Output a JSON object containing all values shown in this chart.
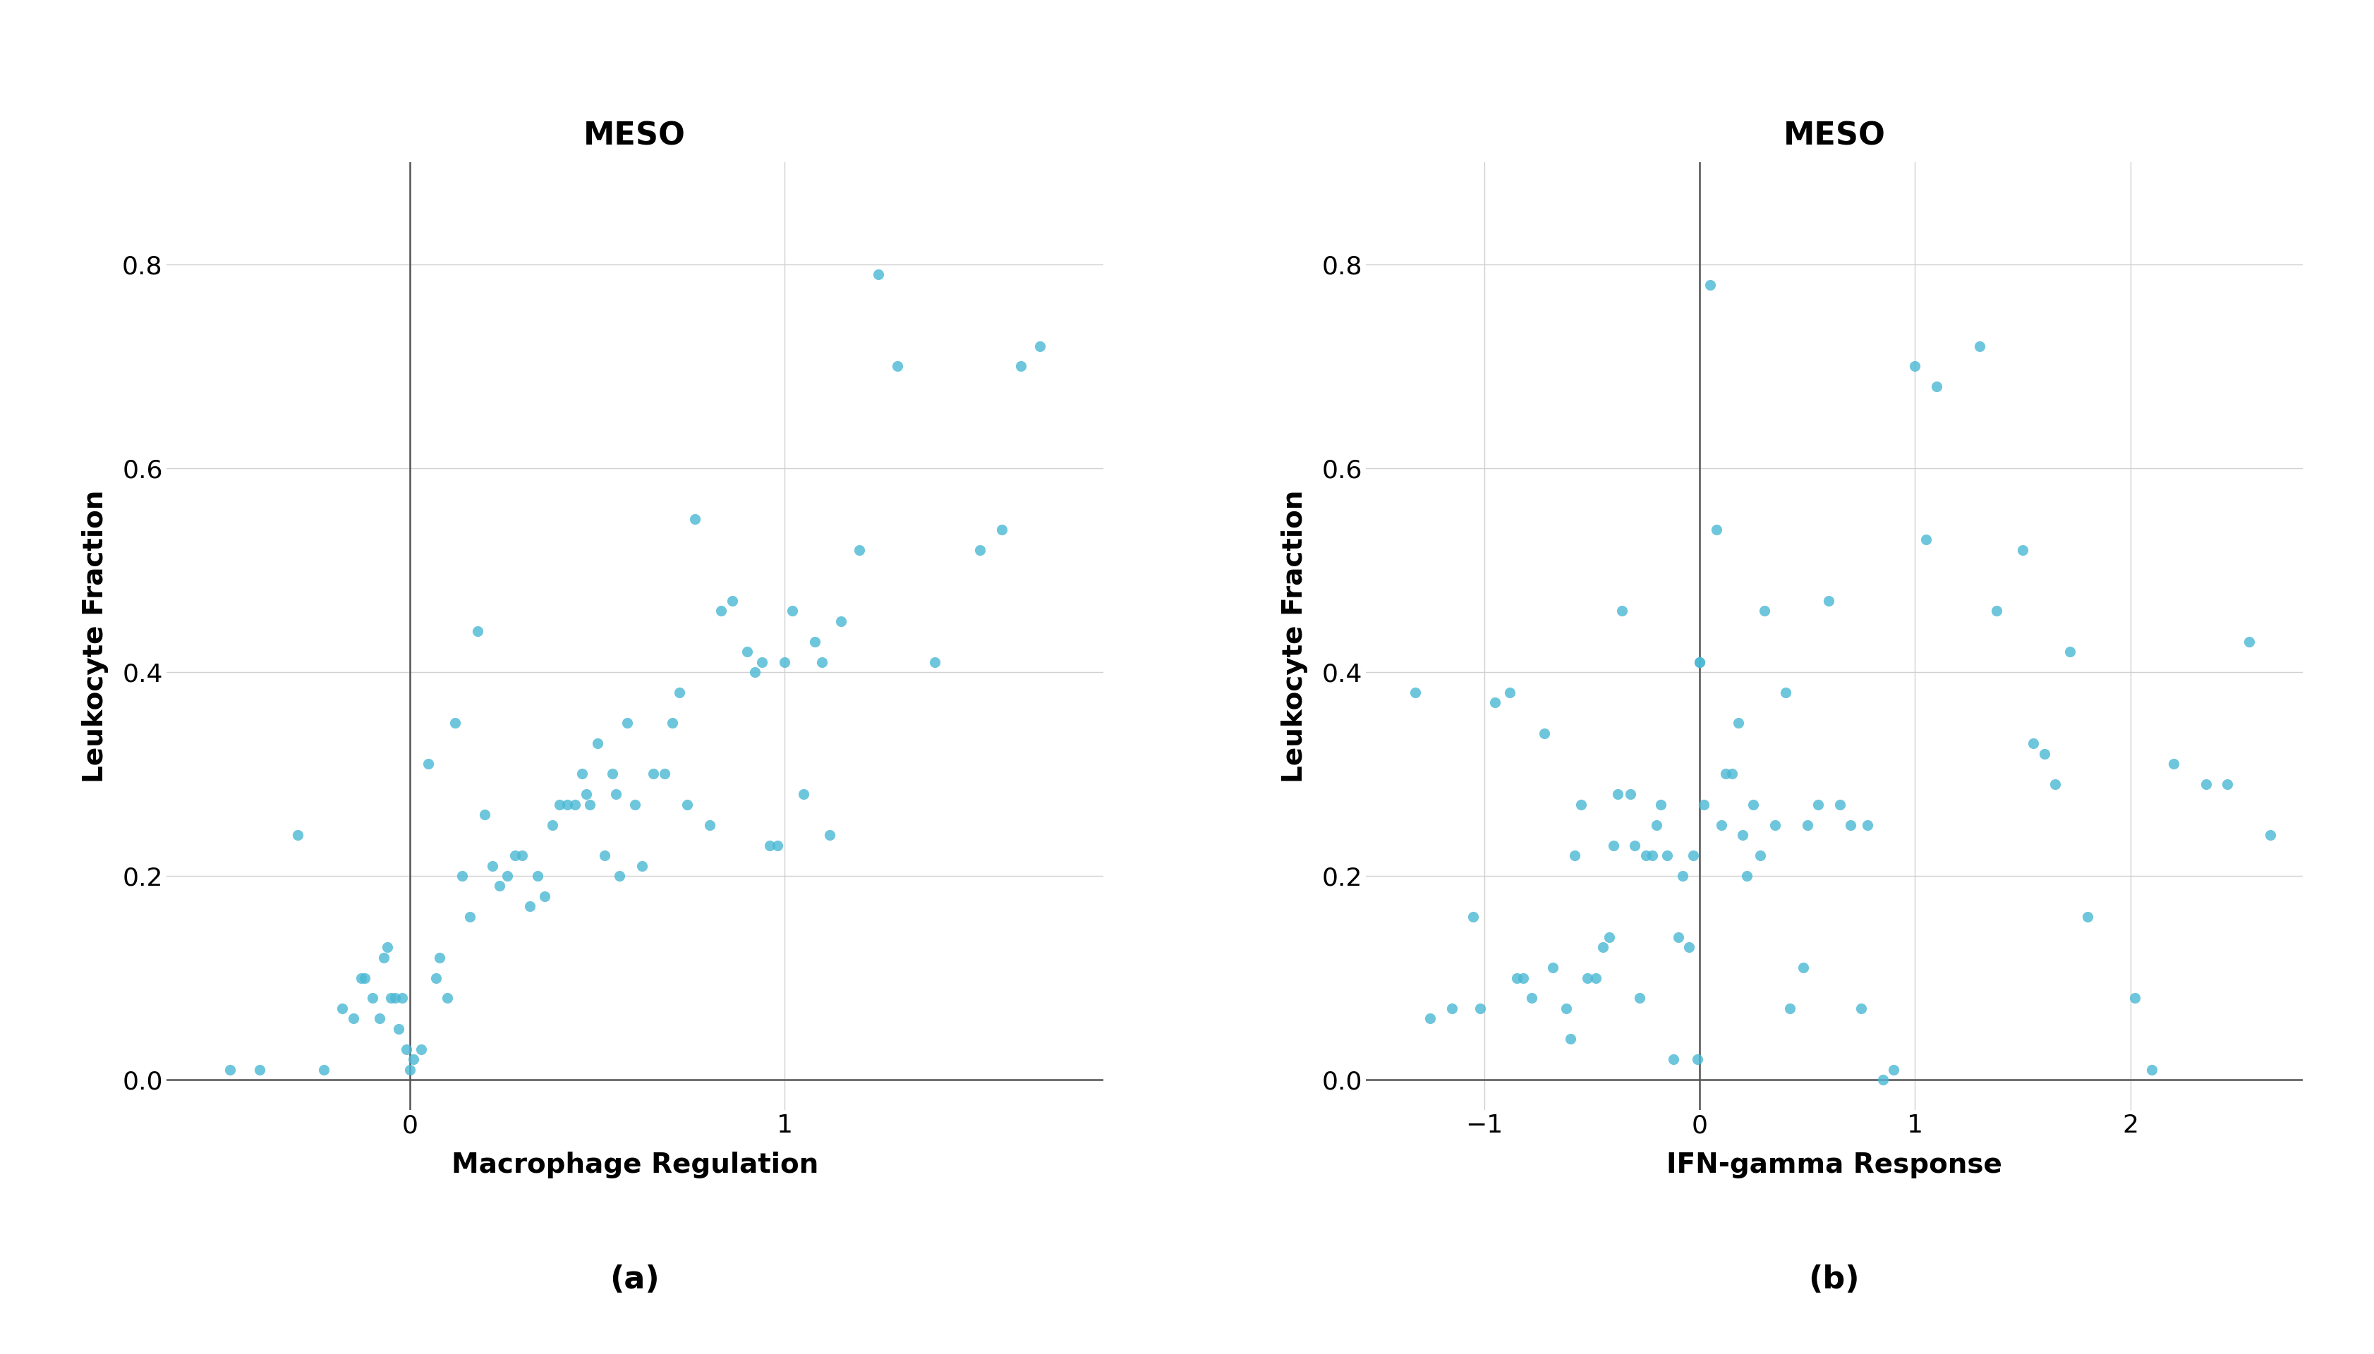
{
  "plot_a": {
    "title": "MESO",
    "xlabel": "Macrophage Regulation",
    "ylabel": "Leukocyte Fraction",
    "label": "(a)",
    "xlim": [
      -0.65,
      1.85
    ],
    "ylim": [
      -0.03,
      0.9
    ],
    "xticks": [
      0,
      1
    ],
    "yticks": [
      0.0,
      0.2,
      0.4,
      0.6,
      0.8
    ],
    "vline": 0,
    "hline": 0,
    "x": [
      -0.48,
      -0.4,
      -0.3,
      -0.23,
      -0.18,
      -0.15,
      -0.13,
      -0.12,
      -0.1,
      -0.08,
      -0.07,
      -0.06,
      -0.05,
      -0.04,
      -0.03,
      -0.02,
      -0.01,
      0.0,
      0.01,
      0.03,
      0.05,
      0.07,
      0.08,
      0.1,
      0.12,
      0.14,
      0.16,
      0.18,
      0.2,
      0.22,
      0.24,
      0.26,
      0.28,
      0.3,
      0.32,
      0.34,
      0.36,
      0.38,
      0.4,
      0.42,
      0.44,
      0.46,
      0.47,
      0.48,
      0.5,
      0.52,
      0.54,
      0.55,
      0.56,
      0.58,
      0.6,
      0.62,
      0.65,
      0.68,
      0.7,
      0.72,
      0.74,
      0.76,
      0.8,
      0.83,
      0.86,
      0.9,
      0.92,
      0.94,
      0.96,
      0.98,
      1.0,
      1.02,
      1.05,
      1.08,
      1.1,
      1.12,
      1.15,
      1.2,
      1.25,
      1.3,
      1.4,
      1.52,
      1.58,
      1.63,
      1.68
    ],
    "y": [
      0.01,
      0.01,
      0.24,
      0.01,
      0.07,
      0.06,
      0.1,
      0.1,
      0.08,
      0.06,
      0.12,
      0.13,
      0.08,
      0.08,
      0.05,
      0.08,
      0.03,
      0.01,
      0.02,
      0.03,
      0.31,
      0.1,
      0.12,
      0.08,
      0.35,
      0.2,
      0.16,
      0.44,
      0.26,
      0.21,
      0.19,
      0.2,
      0.22,
      0.22,
      0.17,
      0.2,
      0.18,
      0.25,
      0.27,
      0.27,
      0.27,
      0.3,
      0.28,
      0.27,
      0.33,
      0.22,
      0.3,
      0.28,
      0.2,
      0.35,
      0.27,
      0.21,
      0.3,
      0.3,
      0.35,
      0.38,
      0.27,
      0.55,
      0.25,
      0.46,
      0.47,
      0.42,
      0.4,
      0.41,
      0.23,
      0.23,
      0.41,
      0.46,
      0.28,
      0.43,
      0.41,
      0.24,
      0.45,
      0.52,
      0.79,
      0.7,
      0.41,
      0.52,
      0.54,
      0.7,
      0.72
    ]
  },
  "plot_b": {
    "title": "MESO",
    "xlabel": "IFN-gamma Response",
    "ylabel": "Leukocyte Fraction",
    "label": "(b)",
    "xlim": [
      -1.55,
      2.8
    ],
    "ylim": [
      -0.03,
      0.9
    ],
    "xticks": [
      -1,
      0,
      1,
      2
    ],
    "yticks": [
      0.0,
      0.2,
      0.4,
      0.6,
      0.8
    ],
    "vline": 0,
    "hline": 0,
    "x": [
      -1.32,
      -1.25,
      -1.15,
      -1.05,
      -1.02,
      -0.95,
      -0.88,
      -0.85,
      -0.82,
      -0.78,
      -0.72,
      -0.68,
      -0.62,
      -0.6,
      -0.58,
      -0.55,
      -0.52,
      -0.48,
      -0.45,
      -0.42,
      -0.4,
      -0.38,
      -0.36,
      -0.32,
      -0.3,
      -0.28,
      -0.25,
      -0.22,
      -0.2,
      -0.18,
      -0.15,
      -0.12,
      -0.1,
      -0.08,
      -0.05,
      -0.03,
      -0.01,
      0.0,
      0.0,
      0.02,
      0.05,
      0.08,
      0.1,
      0.12,
      0.15,
      0.18,
      0.2,
      0.22,
      0.25,
      0.28,
      0.3,
      0.35,
      0.4,
      0.42,
      0.48,
      0.5,
      0.55,
      0.6,
      0.65,
      0.7,
      0.75,
      0.78,
      0.85,
      0.9,
      1.0,
      1.05,
      1.1,
      1.3,
      1.38,
      1.5,
      1.55,
      1.6,
      1.65,
      1.72,
      1.8,
      2.02,
      2.1,
      2.2,
      2.35,
      2.45,
      2.55,
      2.65
    ],
    "y": [
      0.38,
      0.06,
      0.07,
      0.16,
      0.07,
      0.37,
      0.38,
      0.1,
      0.1,
      0.08,
      0.34,
      0.11,
      0.07,
      0.04,
      0.22,
      0.27,
      0.1,
      0.1,
      0.13,
      0.14,
      0.23,
      0.28,
      0.46,
      0.28,
      0.23,
      0.08,
      0.22,
      0.22,
      0.25,
      0.27,
      0.22,
      0.02,
      0.14,
      0.2,
      0.13,
      0.22,
      0.02,
      0.41,
      0.41,
      0.27,
      0.78,
      0.54,
      0.25,
      0.3,
      0.3,
      0.35,
      0.24,
      0.2,
      0.27,
      0.22,
      0.46,
      0.25,
      0.38,
      0.07,
      0.11,
      0.25,
      0.27,
      0.47,
      0.27,
      0.25,
      0.07,
      0.25,
      0.0,
      0.01,
      0.7,
      0.53,
      0.68,
      0.72,
      0.46,
      0.52,
      0.33,
      0.32,
      0.29,
      0.42,
      0.16,
      0.08,
      0.01,
      0.31,
      0.29,
      0.29,
      0.43,
      0.24
    ]
  },
  "dot_color": "#4ab8d4",
  "dot_size": 120,
  "dot_alpha": 0.8,
  "grid_color": "#d0d0d0",
  "spine_color": "#555555",
  "vline_color": "#555555",
  "hline_color": "#555555",
  "title_fontsize": 32,
  "label_fontsize": 28,
  "tick_fontsize": 26,
  "caption_fontsize": 32,
  "background_color": "#ffffff"
}
